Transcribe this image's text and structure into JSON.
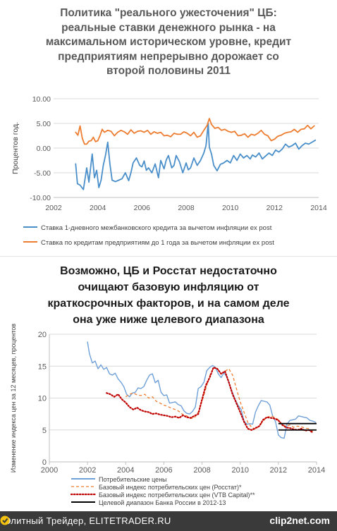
{
  "top_chart": {
    "title": "Политика \"реального ужесточения\" ЦБ:\nреальные ставки денежного рынка - на\nмаксимальном историческом уровне, кредит\nпредприятиям непрерывно дорожает со\nвторой половины 2011"
  },
  "bottom_chart": {
    "title": "Возможно, ЦБ и Росстат недостаточно\nочищают базовую инфляцию от\nкраткосрочных факторов, и на самом деле\nона уже ниже целевого диапазона"
  },
  "footer": {
    "left_text": "Элитный Трейдер, ELITETRADER.RU",
    "logo_text": "clip2net.com"
  },
  "chart_data": [
    {
      "type": "line",
      "title": "Политика \"реального ужесточения\" ЦБ: реальные ставки денежного рынка - на максимальном историческом уровне, кредит предприятиям непрерывно дорожает со второй половины 2011",
      "xlabel": "",
      "ylabel": "Процентов год.",
      "xlim": [
        2002,
        2014
      ],
      "ylim": [
        -10,
        10
      ],
      "x_ticks": [
        "2002",
        "2004",
        "2006",
        "2008",
        "2010",
        "2012",
        "2014"
      ],
      "y_ticks": [
        "-10.00",
        "-5.00",
        "0.00",
        "5.00",
        "10.00"
      ],
      "grid": true,
      "legend": "bottom",
      "series": [
        {
          "name": "Ставка 1-дневного межбанковского кредита за вычетом инфляции ex post",
          "color": "#4a8fca",
          "x": [
            2003.0,
            2003.08,
            2003.2,
            2003.35,
            2003.5,
            2003.6,
            2003.75,
            2003.85,
            2003.95,
            2004.05,
            2004.15,
            2004.25,
            2004.35,
            2004.45,
            2004.55,
            2004.65,
            2004.8,
            2004.95,
            2005.1,
            2005.25,
            2005.4,
            2005.5,
            2005.6,
            2005.75,
            2005.9,
            2006.0,
            2006.1,
            2006.2,
            2006.3,
            2006.45,
            2006.6,
            2006.75,
            2006.85,
            2007.0,
            2007.1,
            2007.2,
            2007.35,
            2007.45,
            2007.55,
            2007.7,
            2007.85,
            2008.0,
            2008.1,
            2008.2,
            2008.35,
            2008.5,
            2008.65,
            2008.8,
            2008.9,
            2009.0,
            2009.05,
            2009.15,
            2009.25,
            2009.4,
            2009.55,
            2009.7,
            2009.85,
            2010.0,
            2010.15,
            2010.3,
            2010.45,
            2010.6,
            2010.75,
            2010.9,
            2011.0,
            2011.15,
            2011.3,
            2011.45,
            2011.6,
            2011.75,
            2011.9,
            2012.05,
            2012.2,
            2012.35,
            2012.5,
            2012.65,
            2012.8,
            2012.95,
            2013.1,
            2013.25,
            2013.4,
            2013.55,
            2013.7,
            2013.85
          ],
          "values": [
            -3.2,
            -7.2,
            -7.5,
            -8.4,
            -4.0,
            -6.9,
            -1.2,
            -6.0,
            -4.5,
            -8.0,
            -6.5,
            -3.5,
            -1.5,
            1.2,
            -3.2,
            -6.5,
            -6.8,
            -6.5,
            -6.2,
            -5.0,
            -6.6,
            -5.0,
            -3.0,
            -2.0,
            -3.5,
            -3.8,
            -2.6,
            -4.5,
            -4.0,
            -5.0,
            -3.2,
            -6.0,
            -2.5,
            -4.2,
            -2.4,
            -1.5,
            -4.0,
            -3.5,
            -1.5,
            -2.8,
            -5.0,
            -3.0,
            -4.4,
            -4.0,
            -2.0,
            -3.5,
            -2.5,
            -1.0,
            0.5,
            5.0,
            0.2,
            -1.2,
            -3.5,
            -4.6,
            -3.3,
            -3.0,
            -2.5,
            -3.0,
            -1.5,
            -2.5,
            -1.2,
            -2.0,
            -1.5,
            -2.2,
            -1.4,
            -1.8,
            -1.0,
            -2.2,
            -1.6,
            -1.0,
            -1.5,
            -0.4,
            -0.8,
            -0.2,
            0.8,
            0.2,
            0.5,
            1.0,
            -0.2,
            0.5,
            1.0,
            0.8,
            1.2,
            1.6
          ]
        },
        {
          "name": "Ставка по кредитам предприятиям до 1 года за вычетом инфляции ex post",
          "color": "#ed7d31",
          "x": [
            2003.0,
            2003.1,
            2003.2,
            2003.3,
            2003.4,
            2003.5,
            2003.6,
            2003.7,
            2003.8,
            2003.9,
            2004.0,
            2004.1,
            2004.2,
            2004.3,
            2004.45,
            2004.6,
            2004.75,
            2004.9,
            2005.05,
            2005.2,
            2005.35,
            2005.5,
            2005.65,
            2005.8,
            2005.95,
            2006.1,
            2006.25,
            2006.4,
            2006.55,
            2006.7,
            2006.85,
            2007.0,
            2007.15,
            2007.3,
            2007.45,
            2007.6,
            2007.75,
            2007.9,
            2008.05,
            2008.2,
            2008.35,
            2008.5,
            2008.65,
            2008.8,
            2008.95,
            2009.05,
            2009.15,
            2009.3,
            2009.45,
            2009.6,
            2009.75,
            2009.9,
            2010.05,
            2010.2,
            2010.35,
            2010.5,
            2010.65,
            2010.8,
            2010.95,
            2011.1,
            2011.25,
            2011.4,
            2011.55,
            2011.7,
            2011.85,
            2012.0,
            2012.15,
            2012.3,
            2012.45,
            2012.6,
            2012.75,
            2012.9,
            2013.05,
            2013.2,
            2013.35,
            2013.5,
            2013.65,
            2013.8
          ],
          "values": [
            3.2,
            2.6,
            4.5,
            2.0,
            0.8,
            0.8,
            1.4,
            1.5,
            2.2,
            1.3,
            1.5,
            2.5,
            3.8,
            3.2,
            3.6,
            3.4,
            2.5,
            3.2,
            3.6,
            3.3,
            2.8,
            3.7,
            3.0,
            3.4,
            3.5,
            3.2,
            3.6,
            2.8,
            3.3,
            3.0,
            3.2,
            2.5,
            2.6,
            2.3,
            3.0,
            2.8,
            2.8,
            3.3,
            3.0,
            2.5,
            3.2,
            2.2,
            2.5,
            3.6,
            4.6,
            6.0,
            4.8,
            4.0,
            4.2,
            3.6,
            3.8,
            3.4,
            3.2,
            3.4,
            2.5,
            2.6,
            2.9,
            2.2,
            2.8,
            2.6,
            3.0,
            3.6,
            2.8,
            2.5,
            1.5,
            1.8,
            2.4,
            2.6,
            3.0,
            3.2,
            3.3,
            3.8,
            3.2,
            3.8,
            3.9,
            4.6,
            3.9,
            4.5
          ]
        }
      ]
    },
    {
      "type": "line",
      "title": "Возможно, ЦБ и Росстат недостаточно очищают базовую инфляцию от краткосрочных факторов, и на самом деле она уже ниже целевого диапазона",
      "xlabel": "",
      "ylabel": "Изменение индекса цен за 12 месяцев, процентов",
      "xlim": [
        2000,
        2014
      ],
      "ylim": [
        0,
        20
      ],
      "x_ticks": [
        "2000",
        "2002",
        "2004",
        "2006",
        "2008",
        "2010",
        "2012",
        "2014"
      ],
      "y_ticks": [
        "0",
        "5",
        "10",
        "15",
        "20"
      ],
      "grid": true,
      "legend": "bottom",
      "series": [
        {
          "name": "Потребительские цены",
          "color": "#6fa0d8",
          "style": "solid",
          "x": [
            2002.0,
            2002.1,
            2002.25,
            2002.4,
            2002.55,
            2002.7,
            2002.85,
            2003.0,
            2003.15,
            2003.3,
            2003.45,
            2003.6,
            2003.75,
            2003.9,
            2004.05,
            2004.2,
            2004.35,
            2004.5,
            2004.65,
            2004.8,
            2004.95,
            2005.1,
            2005.25,
            2005.4,
            2005.55,
            2005.7,
            2005.85,
            2006.0,
            2006.15,
            2006.3,
            2006.45,
            2006.6,
            2006.75,
            2006.9,
            2007.05,
            2007.2,
            2007.35,
            2007.5,
            2007.65,
            2007.8,
            2007.95,
            2008.1,
            2008.25,
            2008.4,
            2008.55,
            2008.7,
            2008.85,
            2009.0,
            2009.15,
            2009.3,
            2009.45,
            2009.6,
            2009.75,
            2009.9,
            2010.05,
            2010.2,
            2010.35,
            2010.5,
            2010.65,
            2010.8,
            2010.95,
            2011.1,
            2011.25,
            2011.4,
            2011.55,
            2011.7,
            2011.85,
            2012.0,
            2012.15,
            2012.3,
            2012.45,
            2012.6,
            2012.75,
            2012.9,
            2013.05,
            2013.2,
            2013.35,
            2013.5,
            2013.65,
            2013.8,
            2013.95
          ],
          "values": [
            18.8,
            17.0,
            15.5,
            15.8,
            14.6,
            15.2,
            14.5,
            14.8,
            13.8,
            13.6,
            13.9,
            13.0,
            12.5,
            11.8,
            10.6,
            10.2,
            10.8,
            10.9,
            11.6,
            11.5,
            11.8,
            12.8,
            13.6,
            13.8,
            12.4,
            12.8,
            10.9,
            10.4,
            10.5,
            9.2,
            9.3,
            9.4,
            9.0,
            8.8,
            8.0,
            7.6,
            7.5,
            7.9,
            8.6,
            11.5,
            11.8,
            12.5,
            14.3,
            14.8,
            15.1,
            14.8,
            13.8,
            13.2,
            14.0,
            13.3,
            12.0,
            10.8,
            9.7,
            8.8,
            8.2,
            6.4,
            5.9,
            6.0,
            5.9,
            7.8,
            8.8,
            9.6,
            9.5,
            9.4,
            8.9,
            7.2,
            6.3,
            4.2,
            3.8,
            3.7,
            5.9,
            6.5,
            6.6,
            6.7,
            7.2,
            7.1,
            7.0,
            6.9,
            6.5,
            6.4,
            6.2
          ]
        },
        {
          "name": "Базовый индекс потребительских цен (Росстат)*",
          "color": "#ed7d31",
          "style": "dashed",
          "x": [
            2004.0,
            2004.2,
            2004.4,
            2004.6,
            2004.8,
            2005.0,
            2005.2,
            2005.4,
            2005.6,
            2005.8,
            2006.0,
            2006.2,
            2006.4,
            2006.6,
            2006.8,
            2007.0,
            2007.2,
            2007.4,
            2007.6,
            2007.8,
            2008.0,
            2008.2,
            2008.4,
            2008.6,
            2008.8,
            2009.0,
            2009.2,
            2009.4,
            2009.6,
            2009.8,
            2010.0,
            2010.2,
            2010.4,
            2010.6,
            2010.8,
            2011.0,
            2011.2,
            2011.4,
            2011.6,
            2011.8,
            2012.0,
            2012.2,
            2012.4,
            2012.6,
            2012.8,
            2013.0,
            2013.2,
            2013.4,
            2013.6,
            2013.8
          ],
          "values": [
            10.2,
            10.6,
            10.8,
            10.5,
            10.4,
            10.6,
            10.0,
            10.2,
            9.5,
            9.2,
            8.9,
            8.7,
            8.4,
            8.2,
            7.9,
            7.4,
            7.2,
            6.8,
            6.9,
            7.8,
            9.5,
            11.5,
            13.5,
            14.8,
            14.6,
            13.8,
            14.2,
            14.6,
            13.6,
            11.5,
            9.4,
            7.8,
            6.2,
            5.4,
            5.1,
            5.6,
            6.4,
            7.0,
            7.2,
            7.0,
            6.6,
            5.8,
            5.6,
            5.8,
            5.4,
            5.6,
            5.5,
            5.3,
            5.2,
            4.8
          ]
        },
        {
          "name": "Базовый индекс потребительских цен (VTB Capital)**",
          "color": "#c00000",
          "style": "dotted",
          "x": [
            2003.0,
            2003.2,
            2003.4,
            2003.6,
            2003.8,
            2004.0,
            2004.2,
            2004.4,
            2004.6,
            2004.8,
            2005.0,
            2005.2,
            2005.4,
            2005.6,
            2005.8,
            2006.0,
            2006.2,
            2006.4,
            2006.6,
            2006.8,
            2007.0,
            2007.2,
            2007.4,
            2007.6,
            2007.8,
            2008.0,
            2008.2,
            2008.4,
            2008.6,
            2008.8,
            2009.0,
            2009.2,
            2009.4,
            2009.6,
            2009.8,
            2010.0,
            2010.2,
            2010.4,
            2010.6,
            2010.8,
            2011.0,
            2011.2,
            2011.4,
            2011.6,
            2011.8,
            2012.0,
            2012.2,
            2012.4,
            2012.6,
            2012.8,
            2013.0,
            2013.2,
            2013.4,
            2013.6,
            2013.8
          ],
          "values": [
            10.8,
            10.6,
            10.2,
            10.6,
            9.8,
            9.3,
            8.6,
            8.2,
            8.5,
            8.1,
            7.9,
            7.8,
            7.5,
            7.6,
            7.4,
            7.3,
            7.2,
            7.0,
            7.1,
            6.9,
            7.3,
            7.0,
            6.9,
            7.2,
            7.5,
            9.8,
            12.0,
            13.2,
            14.8,
            14.6,
            13.8,
            14.2,
            12.5,
            10.6,
            9.2,
            7.8,
            6.3,
            5.2,
            5.0,
            5.3,
            5.6,
            6.6,
            7.0,
            6.9,
            6.8,
            6.5,
            5.8,
            5.4,
            5.3,
            5.1,
            5.0,
            5.2,
            4.9,
            5.0,
            4.6
          ]
        },
        {
          "name": "Целевой диапазон Банка России в 2012-13",
          "color": "#000000",
          "style": "band",
          "x": [
            2012.0,
            2014.0
          ],
          "lower": 5,
          "upper": 6
        }
      ]
    }
  ]
}
